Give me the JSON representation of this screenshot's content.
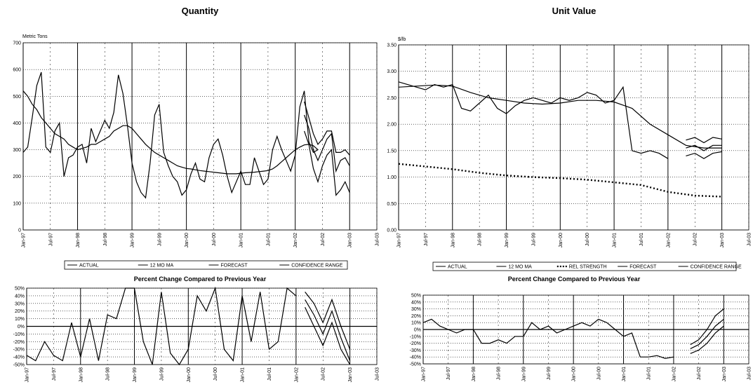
{
  "chart_data": [
    {
      "id": "qty_main",
      "type": "line",
      "title": "Quantity",
      "ylabel": "Metric Tons",
      "ylim": [
        0,
        700
      ],
      "yticks": [
        0,
        100,
        200,
        300,
        400,
        500,
        600,
        700
      ],
      "ytick_labels": [
        "0",
        "100",
        "200",
        "300",
        "400",
        "500",
        "600",
        "700"
      ],
      "xlim": [
        0,
        78
      ],
      "xticks": [
        0,
        6,
        12,
        18,
        24,
        30,
        36,
        42,
        48,
        54,
        60,
        66,
        72,
        78
      ],
      "xtick_labels": [
        "Jan-97",
        "Jul-97",
        "Jan-98",
        "Jul-98",
        "Jan-99",
        "Jul-99",
        "Jan-00",
        "Jul-00",
        "Jan-01",
        "Jul-01",
        "Jan-02",
        "Jul-02",
        "Jan-03",
        "Jul-03"
      ],
      "grid": true,
      "legend": [
        "ACTUAL",
        "12 MO MA",
        "FORECAST",
        "CONFIDENCE RANGE"
      ],
      "series": [
        {
          "name": "ACTUAL",
          "style": "solid",
          "x": [
            0,
            1,
            2,
            3,
            4,
            5,
            6,
            7,
            8,
            9,
            10,
            11,
            12,
            13,
            14,
            15,
            16,
            17,
            18,
            19,
            20,
            21,
            22,
            23,
            24,
            25,
            26,
            27,
            28,
            29,
            30,
            31,
            32,
            33,
            34,
            35,
            36,
            37,
            38,
            39,
            40,
            41,
            42,
            43,
            44,
            45,
            46,
            47,
            48,
            49,
            50,
            51,
            52,
            53,
            54,
            55,
            56,
            57,
            58,
            59,
            60,
            61,
            62,
            63,
            64,
            65
          ],
          "y": [
            290,
            310,
            420,
            540,
            590,
            310,
            290,
            370,
            400,
            200,
            270,
            280,
            310,
            320,
            250,
            380,
            330,
            370,
            410,
            380,
            440,
            580,
            510,
            390,
            250,
            180,
            140,
            120,
            250,
            430,
            470,
            290,
            240,
            200,
            180,
            130,
            150,
            210,
            250,
            190,
            180,
            270,
            320,
            340,
            280,
            200,
            140,
            180,
            220,
            170,
            170,
            270,
            220,
            170,
            190,
            300,
            350,
            300,
            260,
            220,
            280,
            460,
            520,
            330,
            290,
            300
          ]
        },
        {
          "name": "12 MO MA",
          "style": "solid",
          "x": [
            0,
            1,
            2,
            3,
            4,
            5,
            6,
            7,
            8,
            9,
            10,
            11,
            12,
            13,
            14,
            15,
            16,
            17,
            18,
            19,
            20,
            21,
            22,
            23,
            24,
            25,
            26,
            27,
            28,
            29,
            30,
            31,
            32,
            33,
            34,
            35,
            36,
            37,
            38,
            39,
            40,
            41,
            42,
            43,
            44,
            45,
            46,
            47,
            48,
            49,
            50,
            51,
            52,
            53,
            54,
            55,
            56,
            57,
            58,
            59,
            60,
            61,
            62,
            63,
            64,
            65
          ],
          "y": [
            520,
            500,
            470,
            450,
            420,
            400,
            380,
            360,
            350,
            340,
            320,
            310,
            300,
            305,
            310,
            320,
            320,
            330,
            340,
            350,
            370,
            380,
            390,
            390,
            380,
            360,
            340,
            320,
            305,
            290,
            280,
            270,
            260,
            250,
            240,
            235,
            230,
            228,
            225,
            222,
            220,
            218,
            216,
            214,
            212,
            210,
            210,
            210,
            212,
            214,
            215,
            216,
            218,
            220,
            222,
            228,
            240,
            255,
            270,
            285,
            300,
            310,
            318,
            320,
            315,
            300
          ]
        },
        {
          "name": "FORECAST",
          "style": "solid",
          "x": [
            62,
            63,
            64,
            65,
            66,
            67,
            68,
            69,
            70,
            71,
            72
          ],
          "y": [
            430,
            380,
            300,
            260,
            300,
            340,
            360,
            220,
            260,
            270,
            240
          ]
        },
        {
          "name": "CONFIDENCE RANGE",
          "style": "solid",
          "x": [
            62,
            63,
            64,
            65,
            66,
            67,
            68,
            69,
            70,
            71,
            72
          ],
          "y": [
            480,
            420,
            360,
            320,
            340,
            370,
            370,
            290,
            290,
            300,
            280
          ]
        },
        {
          "name": "CONFIDENCE RANGE",
          "style": "solid",
          "x": [
            62,
            63,
            64,
            65,
            66,
            67,
            68,
            69,
            70,
            71,
            72
          ],
          "y": [
            370,
            320,
            230,
            180,
            240,
            280,
            300,
            130,
            150,
            180,
            140
          ]
        }
      ]
    },
    {
      "id": "val_main",
      "type": "line",
      "title": "Unit Value",
      "ylabel": "$/lb",
      "ylim": [
        0,
        3.5
      ],
      "yticks": [
        0,
        0.5,
        1.0,
        1.5,
        2.0,
        2.5,
        3.0,
        3.5
      ],
      "ytick_labels": [
        "0.00",
        "0.50",
        "1.00",
        "1.50",
        "2.00",
        "2.50",
        "3.00",
        "3.50"
      ],
      "xlim": [
        0,
        78
      ],
      "xticks": [
        0,
        6,
        12,
        18,
        24,
        30,
        36,
        42,
        48,
        54,
        60,
        66,
        72,
        78
      ],
      "xtick_labels": [
        "Jan-97",
        "Jul-97",
        "Jan-98",
        "Jul-98",
        "Jan-99",
        "Jul-99",
        "Jan-00",
        "Jul-00",
        "Jan-01",
        "Jul-01",
        "Jan-02",
        "Jul-02",
        "Jan-03",
        "Jul-03"
      ],
      "grid": true,
      "legend": [
        "ACTUAL",
        "12 MO MA",
        "REL STRENGTH",
        "FORECAST",
        "CONFIDENCE RANGE"
      ],
      "series": [
        {
          "name": "ACTUAL",
          "style": "solid",
          "x": [
            0,
            2,
            4,
            6,
            8,
            10,
            12,
            14,
            16,
            18,
            20,
            22,
            24,
            26,
            28,
            30,
            32,
            34,
            36,
            38,
            40,
            42,
            44,
            46,
            48,
            50,
            52,
            54,
            56,
            58,
            60
          ],
          "y": [
            2.8,
            2.75,
            2.7,
            2.65,
            2.75,
            2.7,
            2.75,
            2.3,
            2.25,
            2.4,
            2.55,
            2.3,
            2.2,
            2.35,
            2.45,
            2.5,
            2.45,
            2.4,
            2.5,
            2.45,
            2.5,
            2.6,
            2.55,
            2.4,
            2.45,
            2.7,
            1.5,
            1.45,
            1.5,
            1.45,
            1.35
          ]
        },
        {
          "name": "12 MO MA",
          "style": "solid",
          "x": [
            0,
            4,
            8,
            12,
            16,
            20,
            24,
            28,
            32,
            36,
            40,
            44,
            48,
            52,
            56,
            60,
            64,
            68,
            72
          ],
          "y": [
            2.7,
            2.72,
            2.74,
            2.72,
            2.6,
            2.5,
            2.45,
            2.4,
            2.38,
            2.4,
            2.45,
            2.45,
            2.42,
            2.3,
            2.0,
            1.8,
            1.6,
            1.55,
            1.55
          ]
        },
        {
          "name": "REL STRENGTH",
          "style": "dotted",
          "x": [
            0,
            6,
            12,
            18,
            24,
            30,
            36,
            42,
            48,
            54,
            60,
            66,
            72
          ],
          "y": [
            1.25,
            1.2,
            1.15,
            1.08,
            1.03,
            1.0,
            0.98,
            0.95,
            0.9,
            0.85,
            0.72,
            0.65,
            0.63
          ]
        },
        {
          "name": "FORECAST",
          "style": "solid",
          "x": [
            64,
            66,
            68,
            70,
            72
          ],
          "y": [
            1.55,
            1.6,
            1.5,
            1.6,
            1.6
          ]
        },
        {
          "name": "CONFIDENCE RANGE",
          "style": "solid",
          "x": [
            64,
            66,
            68,
            70,
            72
          ],
          "y": [
            1.7,
            1.75,
            1.65,
            1.75,
            1.72
          ]
        },
        {
          "name": "CONFIDENCE RANGE",
          "style": "solid",
          "x": [
            64,
            66,
            68,
            70,
            72
          ],
          "y": [
            1.4,
            1.45,
            1.35,
            1.45,
            1.48
          ]
        }
      ]
    },
    {
      "id": "qty_pct",
      "type": "line",
      "title": "Percent Change Compared to Previous Year",
      "ylim": [
        -50,
        50
      ],
      "yticks": [
        -50,
        -40,
        -30,
        -20,
        -10,
        0,
        10,
        20,
        30,
        40,
        50
      ],
      "ytick_labels": [
        "-50%",
        "-40%",
        "-30%",
        "-20%",
        "-10%",
        "0%",
        "10%",
        "20%",
        "30%",
        "40%",
        "50%"
      ],
      "xlim": [
        0,
        78
      ],
      "xticks": [
        0,
        6,
        12,
        18,
        24,
        30,
        36,
        42,
        48,
        54,
        60,
        66,
        72,
        78
      ],
      "xtick_labels": [
        "Jan-97",
        "Jul-97",
        "Jan-98",
        "Jul-98",
        "Jan-99",
        "Jul-99",
        "Jan-00",
        "Jul-00",
        "Jan-01",
        "Jul-01",
        "Jan-02",
        "Jul-02",
        "Jan-03",
        "Jul-03"
      ],
      "grid": true,
      "series": [
        {
          "name": "ACTUAL",
          "style": "solid",
          "x": [
            0,
            2,
            4,
            6,
            8,
            10,
            12,
            14,
            16,
            18,
            20,
            22,
            24,
            26,
            28,
            30,
            32,
            34,
            36,
            38,
            40,
            42,
            44,
            46,
            48,
            50,
            52,
            54,
            56,
            58,
            60
          ],
          "y": [
            -38,
            -45,
            -20,
            -38,
            -45,
            5,
            -40,
            10,
            -45,
            15,
            10,
            50,
            50,
            -20,
            -50,
            45,
            -35,
            -50,
            -30,
            40,
            20,
            50,
            -30,
            -45,
            40,
            -20,
            45,
            -30,
            -20,
            50,
            40
          ]
        },
        {
          "name": "FORECAST",
          "style": "solid",
          "x": [
            62,
            64,
            66,
            68,
            70,
            72
          ],
          "y": [
            35,
            15,
            -10,
            20,
            -15,
            -45
          ]
        },
        {
          "name": "CONFIDENCE RANGE",
          "style": "solid",
          "x": [
            62,
            64,
            66,
            68,
            70,
            72
          ],
          "y": [
            45,
            30,
            5,
            35,
            0,
            -30
          ]
        },
        {
          "name": "CONFIDENCE RANGE",
          "style": "solid",
          "x": [
            62,
            64,
            66,
            68,
            70,
            72
          ],
          "y": [
            25,
            0,
            -25,
            5,
            -30,
            -50
          ]
        }
      ]
    },
    {
      "id": "val_pct",
      "type": "line",
      "title": "Percent Change Compared to Previous Year",
      "ylim": [
        -50,
        50
      ],
      "yticks": [
        -50,
        -40,
        -30,
        -20,
        -10,
        0,
        10,
        20,
        30,
        40,
        50
      ],
      "ytick_labels": [
        "-50%",
        "-40%",
        "-30%",
        "-20%",
        "-10%",
        "0%",
        "10%",
        "20%",
        "30%",
        "40%",
        "50%"
      ],
      "xlim": [
        0,
        78
      ],
      "xticks": [
        0,
        6,
        12,
        18,
        24,
        30,
        36,
        42,
        48,
        54,
        60,
        66,
        72,
        78
      ],
      "xtick_labels": [
        "Jan-97",
        "Jul-97",
        "Jan-98",
        "Jul-98",
        "Jan-99",
        "Jul-99",
        "Jan-00",
        "Jul-00",
        "Jan-01",
        "Jul-01",
        "Jan-02",
        "Jul-02",
        "Jan-03",
        "Jul-03"
      ],
      "grid": true,
      "series": [
        {
          "name": "ACTUAL",
          "style": "solid",
          "x": [
            0,
            2,
            4,
            6,
            8,
            10,
            12,
            14,
            16,
            18,
            20,
            22,
            24,
            26,
            28,
            30,
            32,
            34,
            36,
            38,
            40,
            42,
            44,
            46,
            48,
            50,
            52,
            54,
            56,
            58,
            60
          ],
          "y": [
            10,
            15,
            5,
            0,
            -5,
            0,
            0,
            -20,
            -20,
            -15,
            -20,
            -10,
            -10,
            10,
            0,
            5,
            -5,
            0,
            5,
            10,
            5,
            15,
            10,
            0,
            -10,
            -5,
            -40,
            -40,
            -38,
            -42,
            -40
          ]
        },
        {
          "name": "FORECAST",
          "style": "solid",
          "x": [
            64,
            66,
            68,
            70,
            72
          ],
          "y": [
            -28,
            -22,
            -10,
            5,
            15
          ]
        },
        {
          "name": "CONFIDENCE RANGE",
          "style": "solid",
          "x": [
            64,
            66,
            68,
            70,
            72
          ],
          "y": [
            -22,
            -15,
            0,
            20,
            30
          ]
        },
        {
          "name": "CONFIDENCE RANGE",
          "style": "solid",
          "x": [
            64,
            66,
            68,
            70,
            72
          ],
          "y": [
            -35,
            -30,
            -20,
            -5,
            5
          ]
        }
      ]
    }
  ]
}
